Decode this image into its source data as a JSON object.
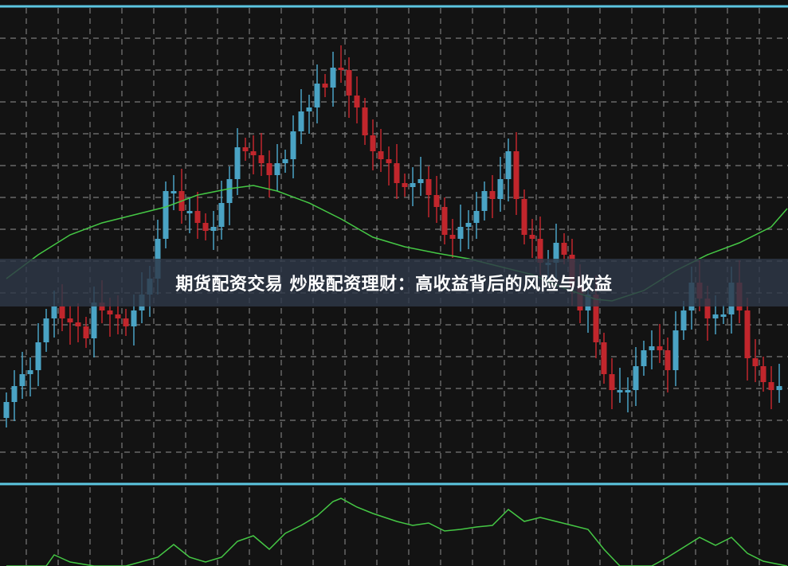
{
  "banner": {
    "title": "期货配资交易 炒股配资理财：高收益背后的风险与收益"
  },
  "colors": {
    "background": "#131313",
    "grid": "#7a7a7a",
    "pane_border": "#5cc6e0",
    "up": "#4aa3c4",
    "down": "#c1262c",
    "ma": "#45c845",
    "indicator": "#45c845"
  },
  "chart_data": [
    {
      "type": "candlestick",
      "title": "",
      "grid": true,
      "axis_labels_visible": false,
      "close": [
        109.5,
        111.5,
        113,
        113.5,
        117,
        120,
        121.5,
        120,
        119.5,
        119,
        117.5,
        122,
        121,
        120.5,
        120,
        119,
        121,
        123,
        125,
        130,
        136,
        136,
        133.5,
        133.5,
        132,
        131,
        131.5,
        134.5,
        137.5,
        141.5,
        141,
        140.5,
        139.5,
        138,
        139.5,
        140,
        143.5,
        146,
        146.5,
        149.5,
        149,
        151.5,
        151.2,
        148,
        146.5,
        143,
        141,
        140,
        139.5,
        137,
        136.5,
        137,
        137.5,
        135.5,
        134,
        130.5,
        130,
        131.5,
        132,
        133.5,
        136,
        135,
        137.5,
        141,
        135,
        130.5,
        130,
        127,
        127,
        129.5,
        128,
        124,
        121,
        123,
        117,
        113,
        111,
        111,
        111,
        114,
        116,
        116.5,
        116,
        113.5,
        118.5,
        121,
        124.5,
        122.5,
        120,
        120.5,
        120.5,
        124.5,
        121,
        115,
        114,
        112,
        111,
        111.5
      ],
      "open_first": 107.5,
      "moving_average": {
        "x_index": [
          0,
          4,
          8,
          12,
          16,
          20,
          24,
          28,
          31,
          34,
          38,
          42,
          46,
          50,
          54,
          58,
          62,
          66,
          70,
          74,
          76,
          80,
          84,
          88,
          92,
          96,
          98
        ],
        "values": [
          125,
          128,
          130.5,
          132,
          133,
          134,
          135.5,
          136.3,
          136.7,
          136,
          134.5,
          132.5,
          130.2,
          129,
          128.2,
          127.5,
          126.5,
          125.5,
          123.8,
          122.4,
          122.2,
          123.5,
          126,
          128,
          129.5,
          131.5,
          133.8
        ]
      }
    },
    {
      "type": "line",
      "title": "",
      "grid": true,
      "x_index": [
        0,
        5,
        6,
        8,
        11,
        15,
        19,
        21,
        23,
        25,
        27,
        29,
        31,
        33,
        35,
        37,
        39,
        41,
        42,
        44,
        46,
        49,
        51,
        53,
        55,
        57,
        59,
        61,
        63,
        65,
        67,
        69,
        71,
        73,
        75,
        77,
        79,
        81,
        83,
        87,
        89,
        91,
        93,
        95,
        98
      ],
      "values": [
        0,
        0,
        14,
        5,
        0,
        0,
        11,
        27,
        11,
        5,
        11,
        31,
        38,
        21,
        41,
        51,
        63,
        81,
        85,
        74,
        66,
        56,
        51,
        54,
        44,
        46,
        49,
        51,
        71,
        56,
        61,
        56,
        51,
        46,
        21,
        0,
        0,
        0,
        11,
        36,
        26,
        36,
        16,
        6,
        0
      ]
    }
  ]
}
